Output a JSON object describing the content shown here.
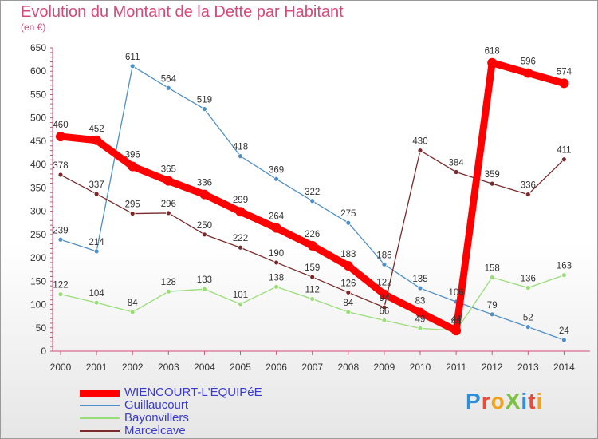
{
  "title": "Evolution du Montant de la Dette par Habitant",
  "subtitle": "(en €)",
  "logo": "ProXiti",
  "chart_data": {
    "type": "line",
    "title": "Evolution du Montant de la Dette par Habitant",
    "ylabel": "(en €)",
    "ylim": [
      0,
      650
    ],
    "yticks": [
      0,
      50,
      100,
      150,
      200,
      250,
      300,
      350,
      400,
      450,
      500,
      550,
      600,
      650
    ],
    "x": [
      "2000",
      "2001",
      "2002",
      "2003",
      "2004",
      "2005",
      "2006",
      "2007",
      "2008",
      "2009",
      "2010",
      "2011",
      "2012",
      "2013",
      "2014"
    ],
    "grid": false,
    "legend_position": "bottom-left",
    "series": [
      {
        "name": "WIENCOURT-L'ÉQUIPéE",
        "color": "#ff0000",
        "values": [
          460,
          452,
          396,
          365,
          336,
          299,
          264,
          226,
          183,
          122,
          83,
          44,
          618,
          596,
          574
        ]
      },
      {
        "name": "Guillaucourt",
        "color": "#4f8fc7",
        "values": [
          239,
          214,
          611,
          564,
          519,
          418,
          369,
          322,
          275,
          186,
          135,
          106,
          79,
          52,
          24
        ]
      },
      {
        "name": "Bayonvillers",
        "color": "#99dd77",
        "values": [
          122,
          104,
          84,
          128,
          133,
          101,
          138,
          112,
          84,
          66,
          49,
          44,
          158,
          136,
          163
        ]
      },
      {
        "name": "Marcelcave",
        "color": "#7a2a2a",
        "values": [
          378,
          337,
          295,
          296,
          250,
          222,
          190,
          159,
          126,
          94,
          430,
          384,
          359,
          336,
          411
        ]
      }
    ]
  }
}
